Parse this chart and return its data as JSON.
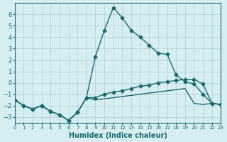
{
  "xlabel": "Humidex (Indice chaleur)",
  "xlim": [
    0,
    23
  ],
  "ylim": [
    -3.5,
    7
  ],
  "yticks": [
    -3,
    -2,
    -1,
    0,
    1,
    2,
    3,
    4,
    5,
    6
  ],
  "xticks": [
    0,
    1,
    2,
    3,
    4,
    5,
    6,
    7,
    8,
    9,
    10,
    11,
    12,
    13,
    14,
    15,
    16,
    17,
    18,
    19,
    20,
    21,
    22,
    23
  ],
  "background_color": "#d6eef2",
  "grid_color": "#b0ccd4",
  "line_color": "#1a6b6b",
  "curve1_x": [
    0,
    1,
    2,
    3,
    4,
    5,
    6,
    7,
    8,
    9,
    10,
    11,
    12,
    13,
    14,
    15,
    16,
    17,
    18,
    19,
    20,
    21,
    22,
    23
  ],
  "curve1_y": [
    -1.5,
    -2.0,
    -2.3,
    -2.0,
    -2.5,
    -2.8,
    -3.3,
    -2.6,
    -1.3,
    2.3,
    4.6,
    6.6,
    5.7,
    4.6,
    4.0,
    3.3,
    2.6,
    2.5,
    0.7,
    0.1,
    -0.1,
    -1.0,
    -1.8,
    -1.9
  ],
  "curve2_x": [
    0,
    1,
    2,
    3,
    4,
    5,
    6,
    7,
    8,
    9,
    10,
    11,
    12,
    13,
    14,
    15,
    16,
    17,
    18,
    19,
    20,
    21,
    22,
    23
  ],
  "curve2_y": [
    -1.5,
    -2.0,
    -2.3,
    -2.0,
    -2.5,
    -2.8,
    -3.3,
    -2.6,
    -1.3,
    -1.3,
    -1.0,
    -0.8,
    -0.7,
    -0.5,
    -0.3,
    -0.2,
    0.0,
    0.1,
    0.2,
    0.3,
    0.3,
    -0.1,
    -1.8,
    -1.9
  ],
  "curve3_x": [
    0,
    1,
    2,
    3,
    4,
    5,
    6,
    7,
    8,
    9,
    10,
    11,
    12,
    13,
    14,
    15,
    16,
    17,
    18,
    19,
    20,
    21,
    22,
    23
  ],
  "curve3_y": [
    -1.5,
    -2.0,
    -2.3,
    -2.0,
    -2.5,
    -2.8,
    -3.3,
    -2.6,
    -1.3,
    -1.5,
    -1.4,
    -1.3,
    -1.2,
    -1.1,
    -1.0,
    -0.9,
    -0.8,
    -0.7,
    -0.6,
    -0.5,
    -1.8,
    -1.9,
    -1.8,
    -1.9
  ]
}
